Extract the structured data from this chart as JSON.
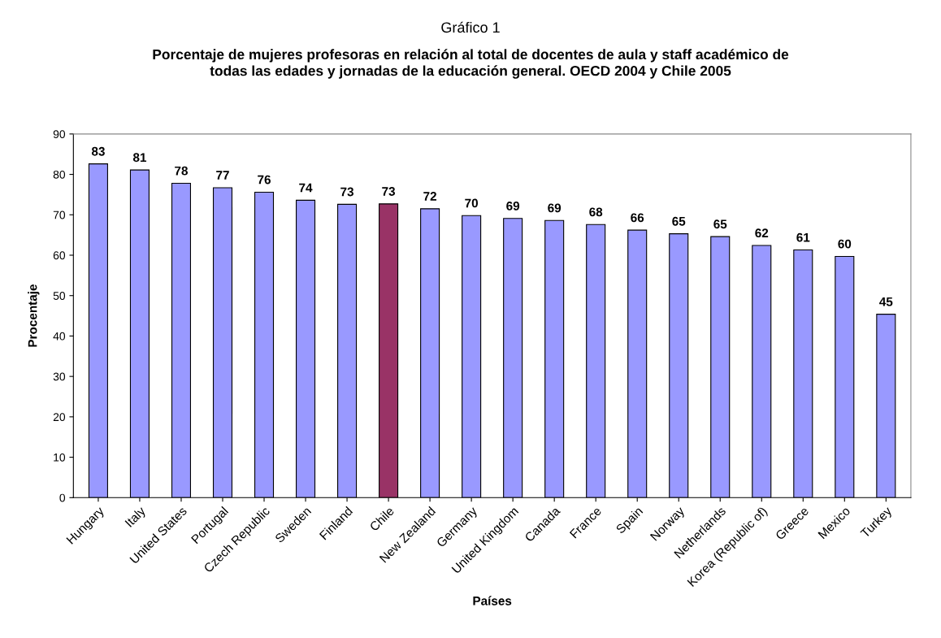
{
  "chart_data": {
    "type": "bar",
    "title": "Gráfico 1",
    "subtitle": "Porcentaje de mujeres profesoras en relación al total de docentes de aula y staff académico de\ntodas las edades y jornadas de la educación general. OECD 2004 y Chile 2005",
    "xlabel": "Países",
    "ylabel": "Procentaje",
    "categories": [
      "Hungary",
      "Italy",
      "United States",
      "Portugal",
      "Czech Republic",
      "Sweden",
      "Finland",
      "Chile",
      "New Zealand",
      "Germany",
      "United Kingdom",
      "Canada",
      "France",
      "Spain",
      "Norway",
      "Netherlands",
      "Korea (Republic of)",
      "Greece",
      "Mexico",
      "Turkey"
    ],
    "values": [
      82.6,
      81.1,
      77.8,
      76.7,
      75.6,
      73.6,
      72.6,
      72.7,
      71.5,
      69.8,
      69.1,
      68.6,
      67.6,
      66.2,
      65.3,
      64.6,
      62.4,
      61.3,
      59.7,
      45.4
    ],
    "value_labels": [
      "83",
      "81",
      "78",
      "77",
      "76",
      "74",
      "73",
      "73",
      "72",
      "70",
      "69",
      "69",
      "68",
      "66",
      "65",
      "65",
      "62",
      "61",
      "60",
      "45"
    ],
    "colors": [
      "#9999ff",
      "#9999ff",
      "#9999ff",
      "#9999ff",
      "#9999ff",
      "#9999ff",
      "#9999ff",
      "#993366",
      "#9999ff",
      "#9999ff",
      "#9999ff",
      "#9999ff",
      "#9999ff",
      "#9999ff",
      "#9999ff",
      "#9999ff",
      "#9999ff",
      "#9999ff",
      "#9999ff",
      "#9999ff"
    ],
    "ylim": [
      0,
      90
    ],
    "yticks": [
      0,
      10,
      20,
      30,
      40,
      50,
      60,
      70,
      80,
      90
    ],
    "grid": false
  }
}
